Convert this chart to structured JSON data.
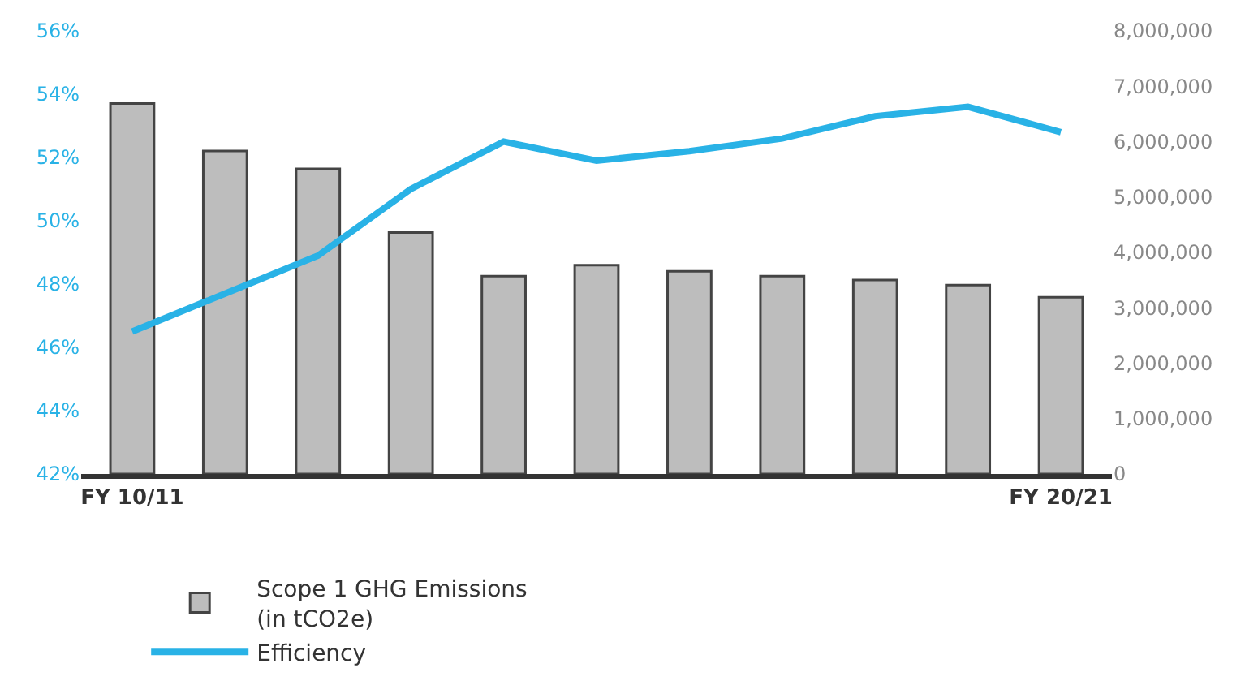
{
  "chart_data": {
    "type": "bar",
    "categories": [
      "FY 10/11",
      null,
      null,
      null,
      null,
      null,
      null,
      null,
      null,
      null,
      "FY 20/21"
    ],
    "series": [
      {
        "name": "Scope 1 GHG Emissions\n(in tCO2e)",
        "axis": "y2",
        "color": "#bdbdbd",
        "values": [
          6690000,
          5830000,
          5510000,
          4360000,
          3570000,
          3770000,
          3660000,
          3570000,
          3500000,
          3410000,
          3190000
        ]
      },
      {
        "name": "Efficiency",
        "type": "line",
        "color": "#29b2e6",
        "values": [
          46.5,
          47.7,
          48.9,
          51.0,
          52.5,
          51.9,
          52.2,
          52.6,
          53.3,
          53.6,
          52.8
        ]
      }
    ],
    "ylim": [
      42,
      56
    ],
    "yticks": [
      {
        "value": 42,
        "label": "42%"
      },
      {
        "value": 44,
        "label": "44%"
      },
      {
        "value": 46,
        "label": "46%"
      },
      {
        "value": 48,
        "label": "48%"
      },
      {
        "value": 50,
        "label": "50%"
      },
      {
        "value": 52,
        "label": "52%"
      },
      {
        "value": 54,
        "label": "54%"
      },
      {
        "value": 56,
        "label": "56%"
      }
    ],
    "y2lim": [
      0,
      8000000
    ],
    "y2ticks": [
      0,
      {
        "value": 1000000,
        "label": "1,000,000"
      },
      {
        "value": 2000000,
        "label": "2,000,000"
      },
      {
        "value": 3000000,
        "label": "3,000,000"
      },
      {
        "value": 4000000,
        "label": "4,000,000"
      },
      {
        "value": 5000000,
        "label": "5,000,000"
      },
      {
        "value": 6000000,
        "label": "6,000,000"
      },
      {
        "value": 7000000,
        "label": "7,000,000"
      },
      {
        "value": 8000000,
        "label": "8,000,000"
      }
    ],
    "grid": false,
    "legend": "bottom",
    "marker": "none",
    "line_style": "solid"
  }
}
